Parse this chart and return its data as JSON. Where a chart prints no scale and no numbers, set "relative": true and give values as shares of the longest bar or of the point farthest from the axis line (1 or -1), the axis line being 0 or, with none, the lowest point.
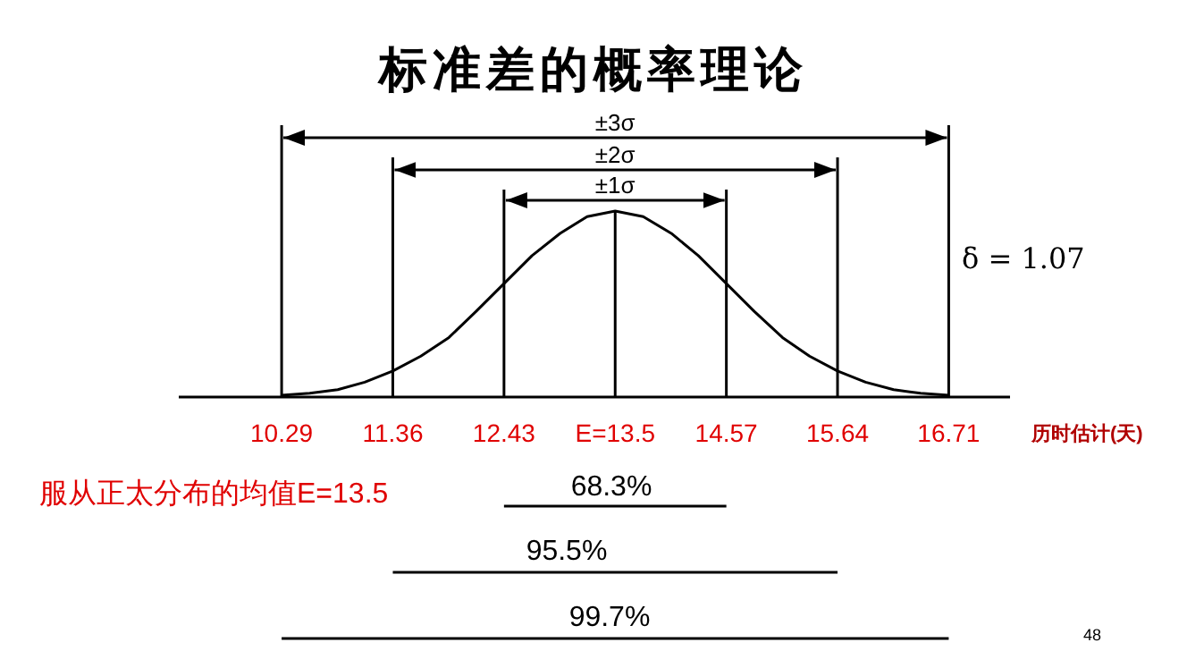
{
  "chart_data": {
    "type": "line",
    "title": "标准差的概率理论",
    "xlabel": "历时估计(天)",
    "relative": true,
    "xlim": [
      9.3,
      17.3
    ],
    "xticks": [
      10.29,
      11.36,
      12.43,
      {
        "value": 13.5,
        "label": "E=13.5"
      },
      14.57,
      15.64,
      16.71
    ],
    "x": [
      10.29,
      10.56,
      10.83,
      11.09,
      11.36,
      11.63,
      11.9,
      12.16,
      12.43,
      12.7,
      12.97,
      13.23,
      13.5,
      13.77,
      14.04,
      14.3,
      14.57,
      14.84,
      15.11,
      15.37,
      15.64,
      15.91,
      16.18,
      16.44,
      16.71
    ],
    "series": [
      {
        "color": "#000000",
        "values": [
          0.01,
          0.02,
          0.04,
          0.08,
          0.14,
          0.22,
          0.32,
          0.46,
          0.61,
          0.76,
          0.88,
          0.97,
          1,
          0.97,
          0.88,
          0.76,
          0.61,
          0.46,
          0.32,
          0.22,
          0.14,
          0.08,
          0.04,
          0.02,
          0.01
        ]
      }
    ],
    "ref_lines": [
      {
        "axis": "x",
        "value": 10.29,
        "color": "#000000"
      },
      {
        "axis": "x",
        "value": 11.36,
        "color": "#000000"
      },
      {
        "axis": "x",
        "value": 12.43,
        "color": "#000000"
      },
      {
        "axis": "x",
        "value": 13.5,
        "color": "#000000"
      },
      {
        "axis": "x",
        "value": 14.57,
        "color": "#000000"
      },
      {
        "axis": "x",
        "value": 15.64,
        "color": "#000000"
      },
      {
        "axis": "x",
        "value": 16.71,
        "color": "#000000"
      }
    ],
    "annotations": [
      "±3σ",
      "±2σ",
      "±1σ",
      "δ = 1.07",
      "服从正太分布的均值E=13.5",
      "68.3%",
      "95.5%",
      "99.7%",
      "48"
    ]
  }
}
